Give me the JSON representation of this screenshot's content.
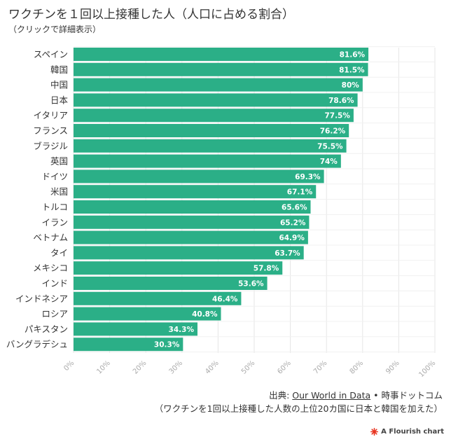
{
  "header": {
    "title": "ワクチンを１回以上接種した人（人口に占める割合）",
    "subtitle": "（クリックで詳細表示）"
  },
  "footer": {
    "source_prefix": "出典: ",
    "source_link": "Our World in Data",
    "source_sep": " • ",
    "source_suffix": "時事ドットコム",
    "note": "（ワクチンを1回以上接種した人数の上位20カ国に日本と韓国を加えた）",
    "credit": "A Flourish chart"
  },
  "colors": {
    "bar": "#2baf87",
    "grid": "#e6e6e6",
    "tick_label": "#aaaaaa",
    "credit_icon": "#e8321e"
  },
  "icons": {
    "credit": "flourish-logo-icon"
  },
  "chart_data": {
    "type": "bar",
    "orientation": "horizontal",
    "categories": [
      "スペイン",
      "韓国",
      "中国",
      "日本",
      "イタリア",
      "フランス",
      "ブラジル",
      "英国",
      "ドイツ",
      "米国",
      "トルコ",
      "イラン",
      "ベトナム",
      "タイ",
      "メキシコ",
      "インド",
      "インドネシア",
      "ロシア",
      "パキスタン",
      "バングラデシュ"
    ],
    "values": [
      81.6,
      81.5,
      80,
      78.6,
      77.5,
      76.2,
      75.5,
      74,
      69.3,
      67.1,
      65.6,
      65.2,
      64.9,
      63.7,
      57.8,
      53.6,
      46.4,
      40.8,
      34.3,
      30.3
    ],
    "value_labels": [
      "81.6%",
      "81.5%",
      "80%",
      "78.6%",
      "77.5%",
      "76.2%",
      "75.5%",
      "74%",
      "69.3%",
      "67.1%",
      "65.6%",
      "65.2%",
      "64.9%",
      "63.7%",
      "57.8%",
      "53.6%",
      "46.4%",
      "40.8%",
      "34.3%",
      "30.3%"
    ],
    "xlim": [
      0,
      100
    ],
    "x_ticks": [
      "0%",
      "10%",
      "20%",
      "30%",
      "40%",
      "50%",
      "60%",
      "70%",
      "80%",
      "90%",
      "100%"
    ],
    "grid": true
  }
}
